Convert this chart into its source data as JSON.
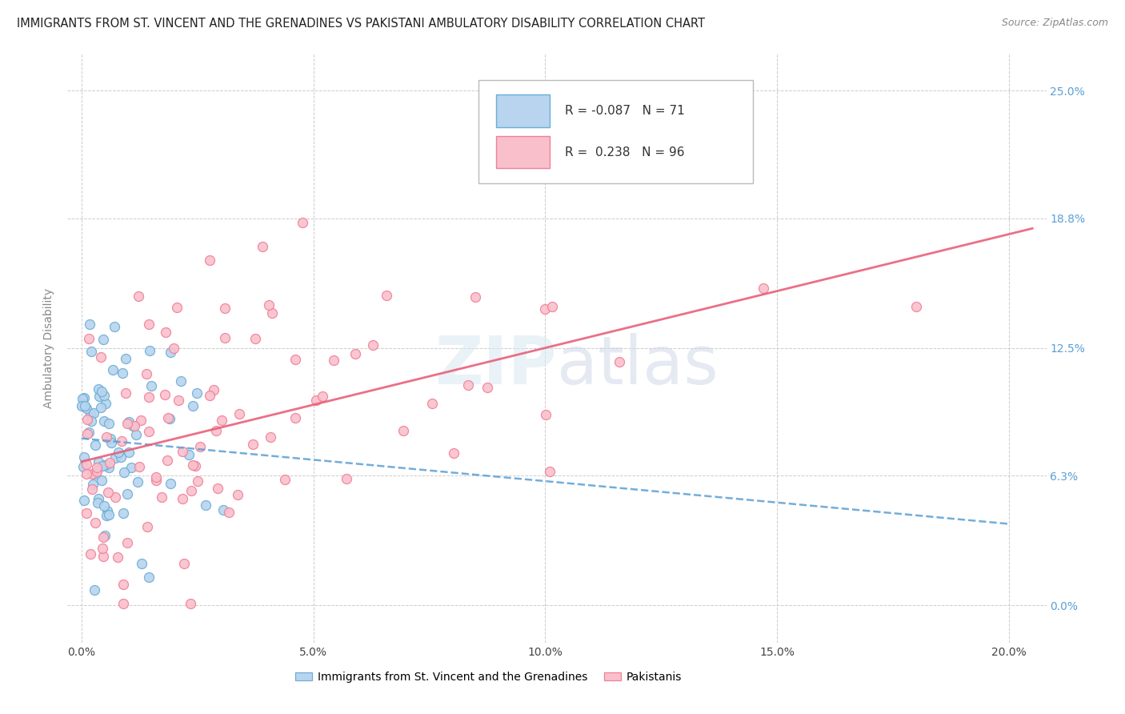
{
  "title": "IMMIGRANTS FROM ST. VINCENT AND THE GRENADINES VS PAKISTANI AMBULATORY DISABILITY CORRELATION CHART",
  "source": "Source: ZipAtlas.com",
  "ylabel": "Ambulatory Disability",
  "legend_labels": [
    "Immigrants from St. Vincent and the Grenadines",
    "Pakistanis"
  ],
  "blue_R": "-0.087",
  "blue_N": "71",
  "pink_R": "0.238",
  "pink_N": "96",
  "blue_fill": "#b8d4ee",
  "pink_fill": "#f9c0cc",
  "blue_edge": "#6aaed6",
  "pink_edge": "#f08098",
  "blue_line_color": "#5a9fd4",
  "pink_line_color": "#e8607a",
  "watermark": "ZIPatlas",
  "xtick_vals": [
    0.0,
    0.05,
    0.1,
    0.15,
    0.2
  ],
  "xtick_labels": [
    "0.0%",
    "5.0%",
    "10.0%",
    "15.0%",
    "20.0%"
  ],
  "ytick_vals": [
    0.0,
    0.063,
    0.125,
    0.188,
    0.25
  ],
  "ytick_labels": [
    "0.0%",
    "6.3%",
    "12.5%",
    "18.8%",
    "25.0%"
  ],
  "xlim": [
    -0.003,
    0.208
  ],
  "ylim": [
    -0.018,
    0.268
  ]
}
